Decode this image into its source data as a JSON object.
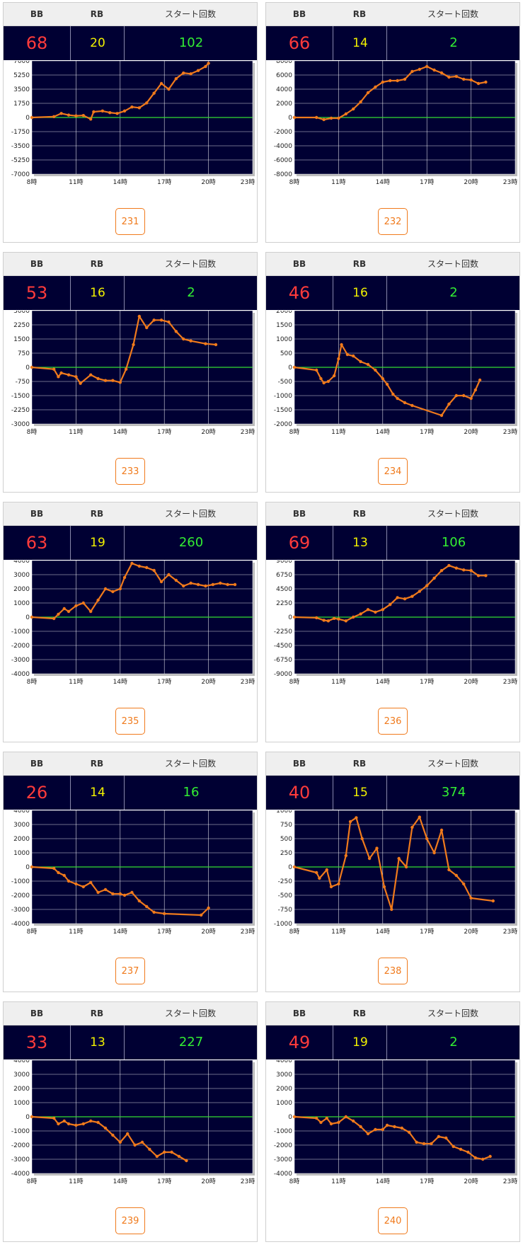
{
  "header": {
    "bb_label": "BB",
    "rb_label": "RB",
    "start_label": "スタート回数"
  },
  "colors": {
    "line": "#f07a1c",
    "zero": "#33dd33",
    "plot_bg": "#000033",
    "bb": "#ff3b3b",
    "rb": "#f2f200",
    "start": "#33ee33"
  },
  "machines": [
    {
      "id": "231",
      "bb": "68",
      "rb": "20",
      "start": "102",
      "chart_data": {
        "type": "line",
        "x_ticks": [
          "8時",
          "11時",
          "14時",
          "17時",
          "20時",
          "23時"
        ],
        "y_ticks": [
          "7000",
          "5250",
          "3500",
          "1750",
          "0",
          "-1750",
          "-3500",
          "-5250",
          "-7000"
        ],
        "ylim": [
          -7000,
          7000
        ],
        "xlim": [
          8,
          23
        ],
        "x": [
          8,
          9.5,
          10,
          10.5,
          11,
          11.5,
          12,
          12.2,
          12.8,
          13.3,
          13.8,
          14.3,
          14.8,
          15.3,
          15.8,
          16.3,
          16.8,
          17.3,
          17.8,
          18.3,
          18.8,
          19.3,
          19.8,
          20
        ],
        "y": [
          0,
          100,
          500,
          300,
          200,
          250,
          -200,
          700,
          800,
          600,
          500,
          800,
          1300,
          1200,
          1800,
          3000,
          4200,
          3500,
          4800,
          5500,
          5400,
          5800,
          6300,
          6700
        ]
      }
    },
    {
      "id": "232",
      "bb": "66",
      "rb": "14",
      "start": "2",
      "chart_data": {
        "type": "line",
        "x_ticks": [
          "8時",
          "11時",
          "14時",
          "17時",
          "20時",
          "23時"
        ],
        "y_ticks": [
          "8000",
          "6000",
          "4000",
          "2000",
          "0",
          "-2000",
          "-4000",
          "-6000",
          "-8000"
        ],
        "ylim": [
          -8000,
          8000
        ],
        "xlim": [
          8,
          23
        ],
        "x": [
          8,
          9.5,
          10,
          10.5,
          11,
          11.5,
          12,
          12.5,
          13,
          13.5,
          14,
          14.5,
          15,
          15.5,
          16,
          16.5,
          17,
          17.5,
          18,
          18.5,
          19,
          19.5,
          20,
          20.5,
          21
        ],
        "y": [
          0,
          0,
          -300,
          -100,
          -100,
          500,
          1200,
          2200,
          3500,
          4300,
          5000,
          5200,
          5200,
          5400,
          6500,
          6800,
          7200,
          6700,
          6300,
          5700,
          5800,
          5400,
          5300,
          4800,
          5000
        ]
      }
    },
    {
      "id": "233",
      "bb": "53",
      "rb": "16",
      "start": "2",
      "chart_data": {
        "type": "line",
        "x_ticks": [
          "8時",
          "11時",
          "14時",
          "17時",
          "20時",
          "23時"
        ],
        "y_ticks": [
          "3000",
          "2250",
          "1500",
          "750",
          "0",
          "-750",
          "-1500",
          "-2250",
          "-3000"
        ],
        "ylim": [
          -3000,
          3000
        ],
        "xlim": [
          8,
          23
        ],
        "x": [
          8,
          9.5,
          9.8,
          10,
          10.5,
          11,
          11.3,
          12,
          12.5,
          13,
          13.5,
          14,
          14.4,
          14.9,
          15.3,
          15.8,
          16.3,
          16.8,
          17.3,
          17.8,
          18.3,
          18.8,
          19.8,
          20.5
        ],
        "y": [
          0,
          -100,
          -500,
          -300,
          -400,
          -500,
          -850,
          -400,
          -600,
          -700,
          -700,
          -800,
          -100,
          1200,
          2700,
          2100,
          2500,
          2500,
          2400,
          1900,
          1500,
          1400,
          1250,
          1200
        ]
      }
    },
    {
      "id": "234",
      "bb": "46",
      "rb": "16",
      "start": "2",
      "chart_data": {
        "type": "line",
        "x_ticks": [
          "8時",
          "11時",
          "14時",
          "17時",
          "20時",
          "23時"
        ],
        "y_ticks": [
          "2000",
          "1500",
          "1000",
          "500",
          "0",
          "-500",
          "-1000",
          "-1500",
          "-2000"
        ],
        "ylim": [
          -2000,
          2000
        ],
        "xlim": [
          8,
          23
        ],
        "x": [
          8,
          9.5,
          9.8,
          10,
          10.3,
          10.7,
          11,
          11.2,
          11.6,
          12,
          12.5,
          13,
          13.5,
          14,
          14.3,
          14.7,
          15,
          15.5,
          16,
          18,
          18.5,
          19,
          19.5,
          20,
          20.3,
          20.6
        ],
        "y": [
          0,
          -100,
          -400,
          -550,
          -500,
          -300,
          300,
          800,
          450,
          400,
          200,
          100,
          -100,
          -400,
          -600,
          -950,
          -1100,
          -1250,
          -1350,
          -1700,
          -1300,
          -1000,
          -1000,
          -1100,
          -800,
          -450
        ]
      }
    },
    {
      "id": "235",
      "bb": "63",
      "rb": "19",
      "start": "260",
      "chart_data": {
        "type": "line",
        "x_ticks": [
          "8時",
          "11時",
          "14時",
          "17時",
          "20時",
          "23時"
        ],
        "y_ticks": [
          "4000",
          "3000",
          "2000",
          "1000",
          "0",
          "-1000",
          "-2000",
          "-3000",
          "-4000"
        ],
        "ylim": [
          -4000,
          4000
        ],
        "xlim": [
          8,
          23
        ],
        "x": [
          8,
          9.5,
          9.8,
          10.2,
          10.5,
          11,
          11.5,
          12,
          12.5,
          13,
          13.5,
          14,
          14.3,
          14.8,
          15.3,
          15.8,
          16.3,
          16.8,
          17.3,
          17.8,
          18.3,
          18.8,
          19.3,
          19.8,
          20.3,
          20.8,
          21.3,
          21.8
        ],
        "y": [
          0,
          -100,
          200,
          600,
          400,
          800,
          1000,
          400,
          1200,
          2000,
          1800,
          2000,
          2800,
          3800,
          3600,
          3500,
          3300,
          2500,
          3000,
          2600,
          2200,
          2400,
          2300,
          2200,
          2300,
          2400,
          2300,
          2300
        ]
      }
    },
    {
      "id": "236",
      "bb": "69",
      "rb": "13",
      "start": "106",
      "chart_data": {
        "type": "line",
        "x_ticks": [
          "8時",
          "11時",
          "14時",
          "17時",
          "20時",
          "23時"
        ],
        "y_ticks": [
          "9000",
          "6750",
          "4500",
          "2250",
          "0",
          "-2250",
          "-4500",
          "-6750",
          "-9000"
        ],
        "ylim": [
          -9000,
          9000
        ],
        "xlim": [
          8,
          23
        ],
        "x": [
          8,
          9.5,
          10,
          10.3,
          10.7,
          11,
          11.5,
          12,
          12.5,
          13,
          13.5,
          14,
          14.5,
          15,
          15.5,
          16,
          16.5,
          17,
          17.5,
          18,
          18.5,
          19,
          19.5,
          20,
          20.5,
          21
        ],
        "y": [
          0,
          -100,
          -500,
          -600,
          -200,
          -300,
          -600,
          0,
          500,
          1200,
          800,
          1200,
          2000,
          3100,
          2900,
          3300,
          4100,
          5000,
          6200,
          7400,
          8200,
          7800,
          7500,
          7400,
          6600,
          6600
        ]
      }
    },
    {
      "id": "237",
      "bb": "26",
      "rb": "14",
      "start": "16",
      "chart_data": {
        "type": "line",
        "x_ticks": [
          "8時",
          "11時",
          "14時",
          "17時",
          "20時",
          "23時"
        ],
        "y_ticks": [
          "4000",
          "3000",
          "2000",
          "1000",
          "0",
          "-1000",
          "-2000",
          "-3000",
          "-4000"
        ],
        "ylim": [
          -4000,
          4000
        ],
        "xlim": [
          8,
          23
        ],
        "x": [
          8,
          9.5,
          9.8,
          10.2,
          10.5,
          11,
          11.5,
          12,
          12.5,
          13,
          13.5,
          14,
          14.3,
          14.8,
          15.3,
          15.8,
          16.3,
          17,
          19.5,
          20
        ],
        "y": [
          0,
          -100,
          -400,
          -600,
          -1000,
          -1200,
          -1400,
          -1100,
          -1800,
          -1600,
          -1900,
          -1900,
          -2000,
          -1800,
          -2400,
          -2800,
          -3200,
          -3300,
          -3400,
          -2900
        ]
      }
    },
    {
      "id": "238",
      "bb": "40",
      "rb": "15",
      "start": "374",
      "chart_data": {
        "type": "line",
        "x_ticks": [
          "8時",
          "11時",
          "14時",
          "17時",
          "20時",
          "23時"
        ],
        "y_ticks": [
          "1000",
          "750",
          "500",
          "250",
          "0",
          "-250",
          "-500",
          "-750",
          "-1000"
        ],
        "ylim": [
          -1000,
          1000
        ],
        "xlim": [
          8,
          23
        ],
        "x": [
          8,
          9.5,
          9.7,
          10.2,
          10.5,
          11,
          11.5,
          11.8,
          12.2,
          12.6,
          13.1,
          13.6,
          14.1,
          14.6,
          15.1,
          15.6,
          16,
          16.5,
          17,
          17.5,
          18,
          18.5,
          19,
          19.5,
          20,
          21.5
        ],
        "y": [
          0,
          -100,
          -200,
          -50,
          -350,
          -300,
          200,
          800,
          870,
          500,
          150,
          330,
          -350,
          -750,
          150,
          0,
          700,
          880,
          500,
          250,
          650,
          -50,
          -150,
          -300,
          -550,
          -600
        ]
      }
    },
    {
      "id": "239",
      "bb": "33",
      "rb": "13",
      "start": "227",
      "chart_data": {
        "type": "line",
        "x_ticks": [
          "8時",
          "11時",
          "14時",
          "17時",
          "20時",
          "23時"
        ],
        "y_ticks": [
          "4000",
          "3000",
          "2000",
          "1000",
          "0",
          "-1000",
          "-2000",
          "-3000",
          "-4000"
        ],
        "ylim": [
          -4000,
          4000
        ],
        "xlim": [
          8,
          23
        ],
        "x": [
          8,
          9.5,
          9.8,
          10.2,
          10.5,
          11,
          11.5,
          12,
          12.5,
          13,
          13.5,
          14,
          14.5,
          15,
          15.5,
          16,
          16.5,
          17,
          17.5,
          18,
          18.5
        ],
        "y": [
          0,
          -100,
          -500,
          -300,
          -500,
          -600,
          -500,
          -300,
          -400,
          -800,
          -1300,
          -1800,
          -1200,
          -2000,
          -1800,
          -2300,
          -2800,
          -2500,
          -2500,
          -2800,
          -3100
        ]
      }
    },
    {
      "id": "240",
      "bb": "49",
      "rb": "19",
      "start": "2",
      "chart_data": {
        "type": "line",
        "x_ticks": [
          "8時",
          "11時",
          "14時",
          "17時",
          "20時",
          "23時"
        ],
        "y_ticks": [
          "4000",
          "3000",
          "2000",
          "1000",
          "0",
          "-1000",
          "-2000",
          "-3000",
          "-4000"
        ],
        "ylim": [
          -4000,
          4000
        ],
        "xlim": [
          8,
          23
        ],
        "x": [
          8,
          9.5,
          9.8,
          10.2,
          10.5,
          11,
          11.5,
          12,
          12.5,
          13,
          13.5,
          14,
          14.3,
          14.8,
          15.3,
          15.8,
          16.3,
          16.8,
          17.3,
          17.8,
          18.3,
          18.8,
          19.3,
          19.8,
          20.3,
          20.8,
          21.3
        ],
        "y": [
          0,
          -100,
          -400,
          -100,
          -500,
          -400,
          0,
          -300,
          -700,
          -1200,
          -900,
          -900,
          -600,
          -700,
          -800,
          -1100,
          -1800,
          -1900,
          -1900,
          -1400,
          -1500,
          -2100,
          -2300,
          -2500,
          -2900,
          -3000,
          -2800
        ]
      }
    }
  ]
}
